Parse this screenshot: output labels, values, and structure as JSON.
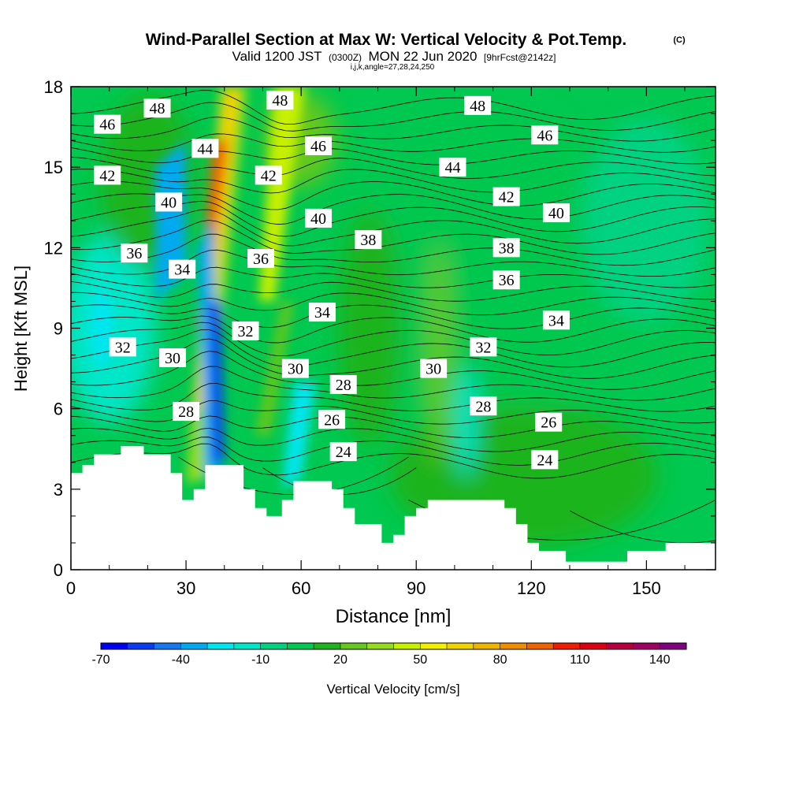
{
  "title": {
    "main": "Wind-Parallel Section at Max W: Vertical Velocity & Pot.Temp.",
    "copyright": "(C)",
    "valid_prefix": "Valid 1200 JST",
    "valid_zulu": "(0300Z)",
    "valid_date": "MON 22 Jun 2020",
    "forecast": "[9hrFcst@2142z]",
    "params": "i,j,k,angle=27,28,24,250"
  },
  "chart_data": {
    "type": "heatmap",
    "xlabel": "Distance [nm]",
    "ylabel": "Height [Kft MSL]",
    "xlim": [
      0,
      168
    ],
    "ylim": [
      0,
      18
    ],
    "x_ticks": [
      0,
      30,
      60,
      90,
      120,
      150
    ],
    "y_ticks": [
      0,
      3,
      6,
      9,
      12,
      15,
      18
    ],
    "colorbar": {
      "label": "Vertical Velocity [cm/s]",
      "min": -70,
      "max": 150,
      "step": 10,
      "tick_labels": [
        -70,
        -40,
        -10,
        20,
        50,
        80,
        110,
        140
      ],
      "colors": [
        "#0000f0",
        "#0a3cf0",
        "#1478f0",
        "#00aaf0",
        "#00e6f0",
        "#00e6c8",
        "#00d282",
        "#00c850",
        "#1eb41e",
        "#64c81e",
        "#96dc1e",
        "#c8f000",
        "#f0f000",
        "#f0d200",
        "#f0b400",
        "#f08c00",
        "#f06400",
        "#f01e00",
        "#dc0014",
        "#b4003c",
        "#a00064",
        "#800080"
      ]
    },
    "velocity_features": [
      {
        "x": 35,
        "y": 13.5,
        "value": 90
      },
      {
        "x": 55,
        "y": 15.5,
        "value": 40
      },
      {
        "x": 26,
        "y": 13,
        "value": -40
      },
      {
        "x": 38,
        "y": 7,
        "value": -60
      },
      {
        "x": 58,
        "y": 4.5,
        "value": -35
      },
      {
        "x": 100,
        "y": 10,
        "value": 0
      }
    ],
    "isentropes": [
      24,
      26,
      28,
      30,
      32,
      34,
      36,
      38,
      40,
      42,
      44,
      46,
      48
    ],
    "contour_labels": [
      {
        "x": 9.5,
        "y": 16.6,
        "text": "46"
      },
      {
        "x": 22.5,
        "y": 17.2,
        "text": "48"
      },
      {
        "x": 54.5,
        "y": 17.5,
        "text": "48"
      },
      {
        "x": 106,
        "y": 17.3,
        "text": "48"
      },
      {
        "x": 35,
        "y": 15.7,
        "text": "44"
      },
      {
        "x": 64.5,
        "y": 15.8,
        "text": "46"
      },
      {
        "x": 123.5,
        "y": 16.2,
        "text": "46"
      },
      {
        "x": 9.5,
        "y": 14.7,
        "text": "42"
      },
      {
        "x": 51.5,
        "y": 14.7,
        "text": "42"
      },
      {
        "x": 99.5,
        "y": 15.0,
        "text": "44"
      },
      {
        "x": 25.5,
        "y": 13.7,
        "text": "40"
      },
      {
        "x": 113.5,
        "y": 13.9,
        "text": "42"
      },
      {
        "x": 64.5,
        "y": 13.1,
        "text": "40"
      },
      {
        "x": 126.5,
        "y": 13.3,
        "text": "40"
      },
      {
        "x": 77.5,
        "y": 12.3,
        "text": "38"
      },
      {
        "x": 113.5,
        "y": 12.0,
        "text": "38"
      },
      {
        "x": 16.5,
        "y": 11.8,
        "text": "36"
      },
      {
        "x": 49.5,
        "y": 11.6,
        "text": "36"
      },
      {
        "x": 29,
        "y": 11.2,
        "text": "34"
      },
      {
        "x": 113.5,
        "y": 10.8,
        "text": "36"
      },
      {
        "x": 65.5,
        "y": 9.6,
        "text": "34"
      },
      {
        "x": 126.5,
        "y": 9.3,
        "text": "34"
      },
      {
        "x": 45.5,
        "y": 8.9,
        "text": "32"
      },
      {
        "x": 13.5,
        "y": 8.3,
        "text": "32"
      },
      {
        "x": 107.5,
        "y": 8.3,
        "text": "32"
      },
      {
        "x": 26.5,
        "y": 7.9,
        "text": "30"
      },
      {
        "x": 58.5,
        "y": 7.5,
        "text": "30"
      },
      {
        "x": 94.5,
        "y": 7.5,
        "text": "30"
      },
      {
        "x": 71,
        "y": 6.9,
        "text": "28"
      },
      {
        "x": 107.5,
        "y": 6.1,
        "text": "28"
      },
      {
        "x": 30,
        "y": 5.9,
        "text": "28"
      },
      {
        "x": 68,
        "y": 5.6,
        "text": "26"
      },
      {
        "x": 124.5,
        "y": 5.5,
        "text": "26"
      },
      {
        "x": 71,
        "y": 4.4,
        "text": "24"
      },
      {
        "x": 123.5,
        "y": 4.1,
        "text": "24"
      }
    ],
    "terrain": [
      [
        0,
        3.6
      ],
      [
        3,
        3.6
      ],
      [
        3,
        3.9
      ],
      [
        6,
        3.9
      ],
      [
        6,
        4.3
      ],
      [
        13,
        4.3
      ],
      [
        13,
        4.6
      ],
      [
        19,
        4.6
      ],
      [
        19,
        4.3
      ],
      [
        26,
        4.3
      ],
      [
        26,
        3.6
      ],
      [
        29,
        3.6
      ],
      [
        29,
        2.6
      ],
      [
        32,
        2.6
      ],
      [
        32,
        3.0
      ],
      [
        35,
        3.0
      ],
      [
        35,
        3.9
      ],
      [
        45,
        3.9
      ],
      [
        45,
        3.0
      ],
      [
        48,
        3.0
      ],
      [
        48,
        2.3
      ],
      [
        51,
        2.3
      ],
      [
        51,
        2.0
      ],
      [
        55,
        2.0
      ],
      [
        55,
        2.6
      ],
      [
        58,
        2.6
      ],
      [
        58,
        3.3
      ],
      [
        68,
        3.3
      ],
      [
        68,
        3.0
      ],
      [
        71,
        3.0
      ],
      [
        71,
        2.3
      ],
      [
        74,
        2.3
      ],
      [
        74,
        1.7
      ],
      [
        81,
        1.7
      ],
      [
        81,
        1.0
      ],
      [
        84,
        1.0
      ],
      [
        84,
        1.3
      ],
      [
        87,
        1.3
      ],
      [
        87,
        2.0
      ],
      [
        90,
        2.0
      ],
      [
        90,
        2.3
      ],
      [
        93,
        2.3
      ],
      [
        93,
        2.6
      ],
      [
        113,
        2.6
      ],
      [
        113,
        2.3
      ],
      [
        116,
        2.3
      ],
      [
        116,
        1.7
      ],
      [
        119,
        1.7
      ],
      [
        119,
        1.0
      ],
      [
        122,
        1.0
      ],
      [
        122,
        0.7
      ],
      [
        129,
        0.7
      ],
      [
        129,
        0.3
      ],
      [
        145,
        0.3
      ],
      [
        145,
        0.7
      ],
      [
        155,
        0.7
      ],
      [
        155,
        1.0
      ],
      [
        168,
        1.0
      ]
    ]
  }
}
